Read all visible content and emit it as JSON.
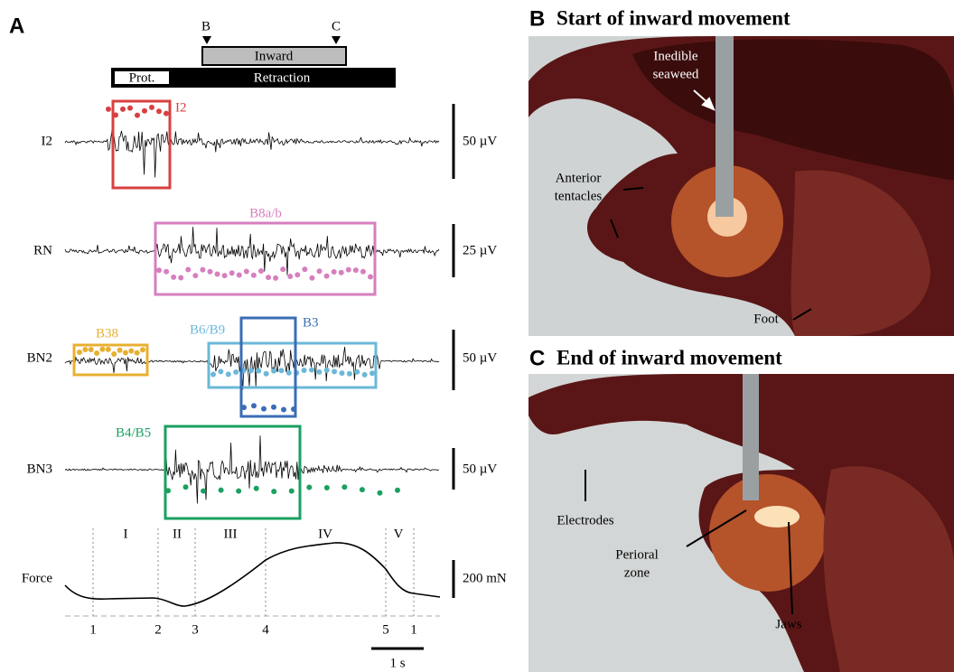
{
  "panel_a": {
    "label": "A",
    "phase_bar": {
      "marker_start": "B",
      "marker_end": "C",
      "inward": "Inward",
      "protraction": "Prot.",
      "retraction": "Retraction"
    },
    "channels": [
      {
        "name": "I2",
        "scale": "50 µV",
        "boxes": [
          {
            "label": "I2"
          }
        ]
      },
      {
        "name": "RN",
        "scale": "25 µV",
        "boxes": [
          {
            "label": "B8a/b"
          }
        ]
      },
      {
        "name": "BN2",
        "scale": "50 µV",
        "boxes": [
          {
            "label": "B38"
          },
          {
            "label": "B6/B9"
          },
          {
            "label": "B3"
          }
        ]
      },
      {
        "name": "BN3",
        "scale": "50 µV",
        "boxes": [
          {
            "label": "B4/B5"
          }
        ]
      }
    ],
    "force": {
      "name": "Force",
      "scale": "200 mN",
      "phases": [
        "I",
        "II",
        "III",
        "IV",
        "V"
      ],
      "time_points": [
        "1",
        "2",
        "3",
        "4",
        "5",
        "1"
      ],
      "time_scale": "1 s"
    }
  },
  "panel_b": {
    "label": "B",
    "title": "Start of inward movement",
    "annotations": [
      {
        "lines": [
          "Inedible",
          "seaweed"
        ]
      },
      {
        "lines": [
          "Anterior",
          "tentacles"
        ]
      },
      {
        "lines": [
          "Foot"
        ]
      }
    ]
  },
  "panel_c": {
    "label": "C",
    "title": "End of inward movement",
    "annotations": [
      {
        "lines": [
          "Electrodes"
        ]
      },
      {
        "lines": [
          "Perioral",
          "zone"
        ]
      },
      {
        "lines": [
          "Jaws"
        ]
      }
    ]
  }
}
